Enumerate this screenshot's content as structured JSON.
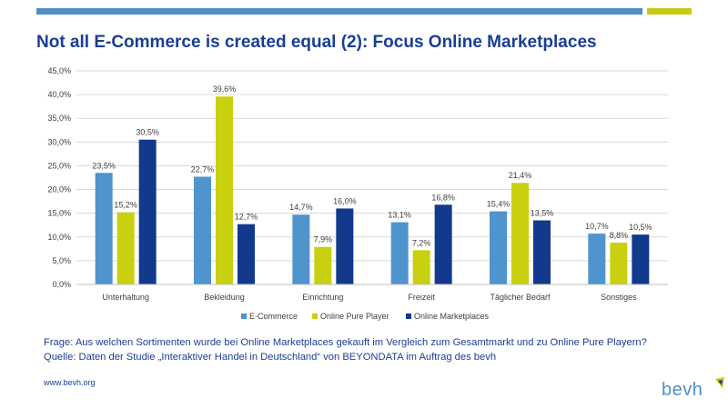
{
  "title": "Not all E-Commerce is created equal (2): Focus Online Marketplaces",
  "colors": {
    "accent_blue": "#4f8fc6",
    "accent_yellow": "#c7cb14",
    "title_blue": "#1b3e94"
  },
  "chart_data": {
    "type": "bar",
    "title": "",
    "xlabel": "",
    "ylabel": "",
    "ylim": [
      0,
      45
    ],
    "yticks": [
      "0,0%",
      "5,0%",
      "10,0%",
      "15,0%",
      "20,0%",
      "25,0%",
      "30,0%",
      "35,0%",
      "40,0%",
      "45,0%"
    ],
    "grid": true,
    "legend_position": "bottom",
    "categories": [
      "Unterhaltung",
      "Bekleidung",
      "Einrichtung",
      "Freizeit",
      "Täglicher Bedarf",
      "Sonstiges"
    ],
    "series": [
      {
        "name": "E-Commerce",
        "color": "#4f94cd",
        "values": [
          23.5,
          22.7,
          14.7,
          13.1,
          15.4,
          10.7
        ],
        "labels": [
          "23,5%",
          "22,7%",
          "14,7%",
          "13,1%",
          "15,4%",
          "10,7%"
        ]
      },
      {
        "name": "Online Pure Player",
        "color": "#c8d00f",
        "values": [
          15.2,
          39.6,
          7.9,
          7.2,
          21.4,
          8.8
        ],
        "labels": [
          "15,2%",
          "39,6%",
          "7,9%",
          "7,2%",
          "21,4%",
          "8,8%"
        ]
      },
      {
        "name": "Online Marketplaces",
        "color": "#13398d",
        "values": [
          30.5,
          12.7,
          16.0,
          16.8,
          13.5,
          10.5
        ],
        "labels": [
          "30,5%",
          "12,7%",
          "16,0%",
          "16,8%",
          "13,5%",
          "10,5%"
        ]
      }
    ]
  },
  "footer": {
    "question": "Frage: Aus welchen Sortimenten wurde bei Online Marketplaces gekauft im Vergleich zum Gesamtmarkt und zu Online Pure Playern?",
    "source": "Quelle: Daten der Studie „Interaktiver Handel in Deutschland“ von BEYONDATA im Auftrag des bevh",
    "url": "www.bevh.org",
    "logo_text": "bevh"
  }
}
